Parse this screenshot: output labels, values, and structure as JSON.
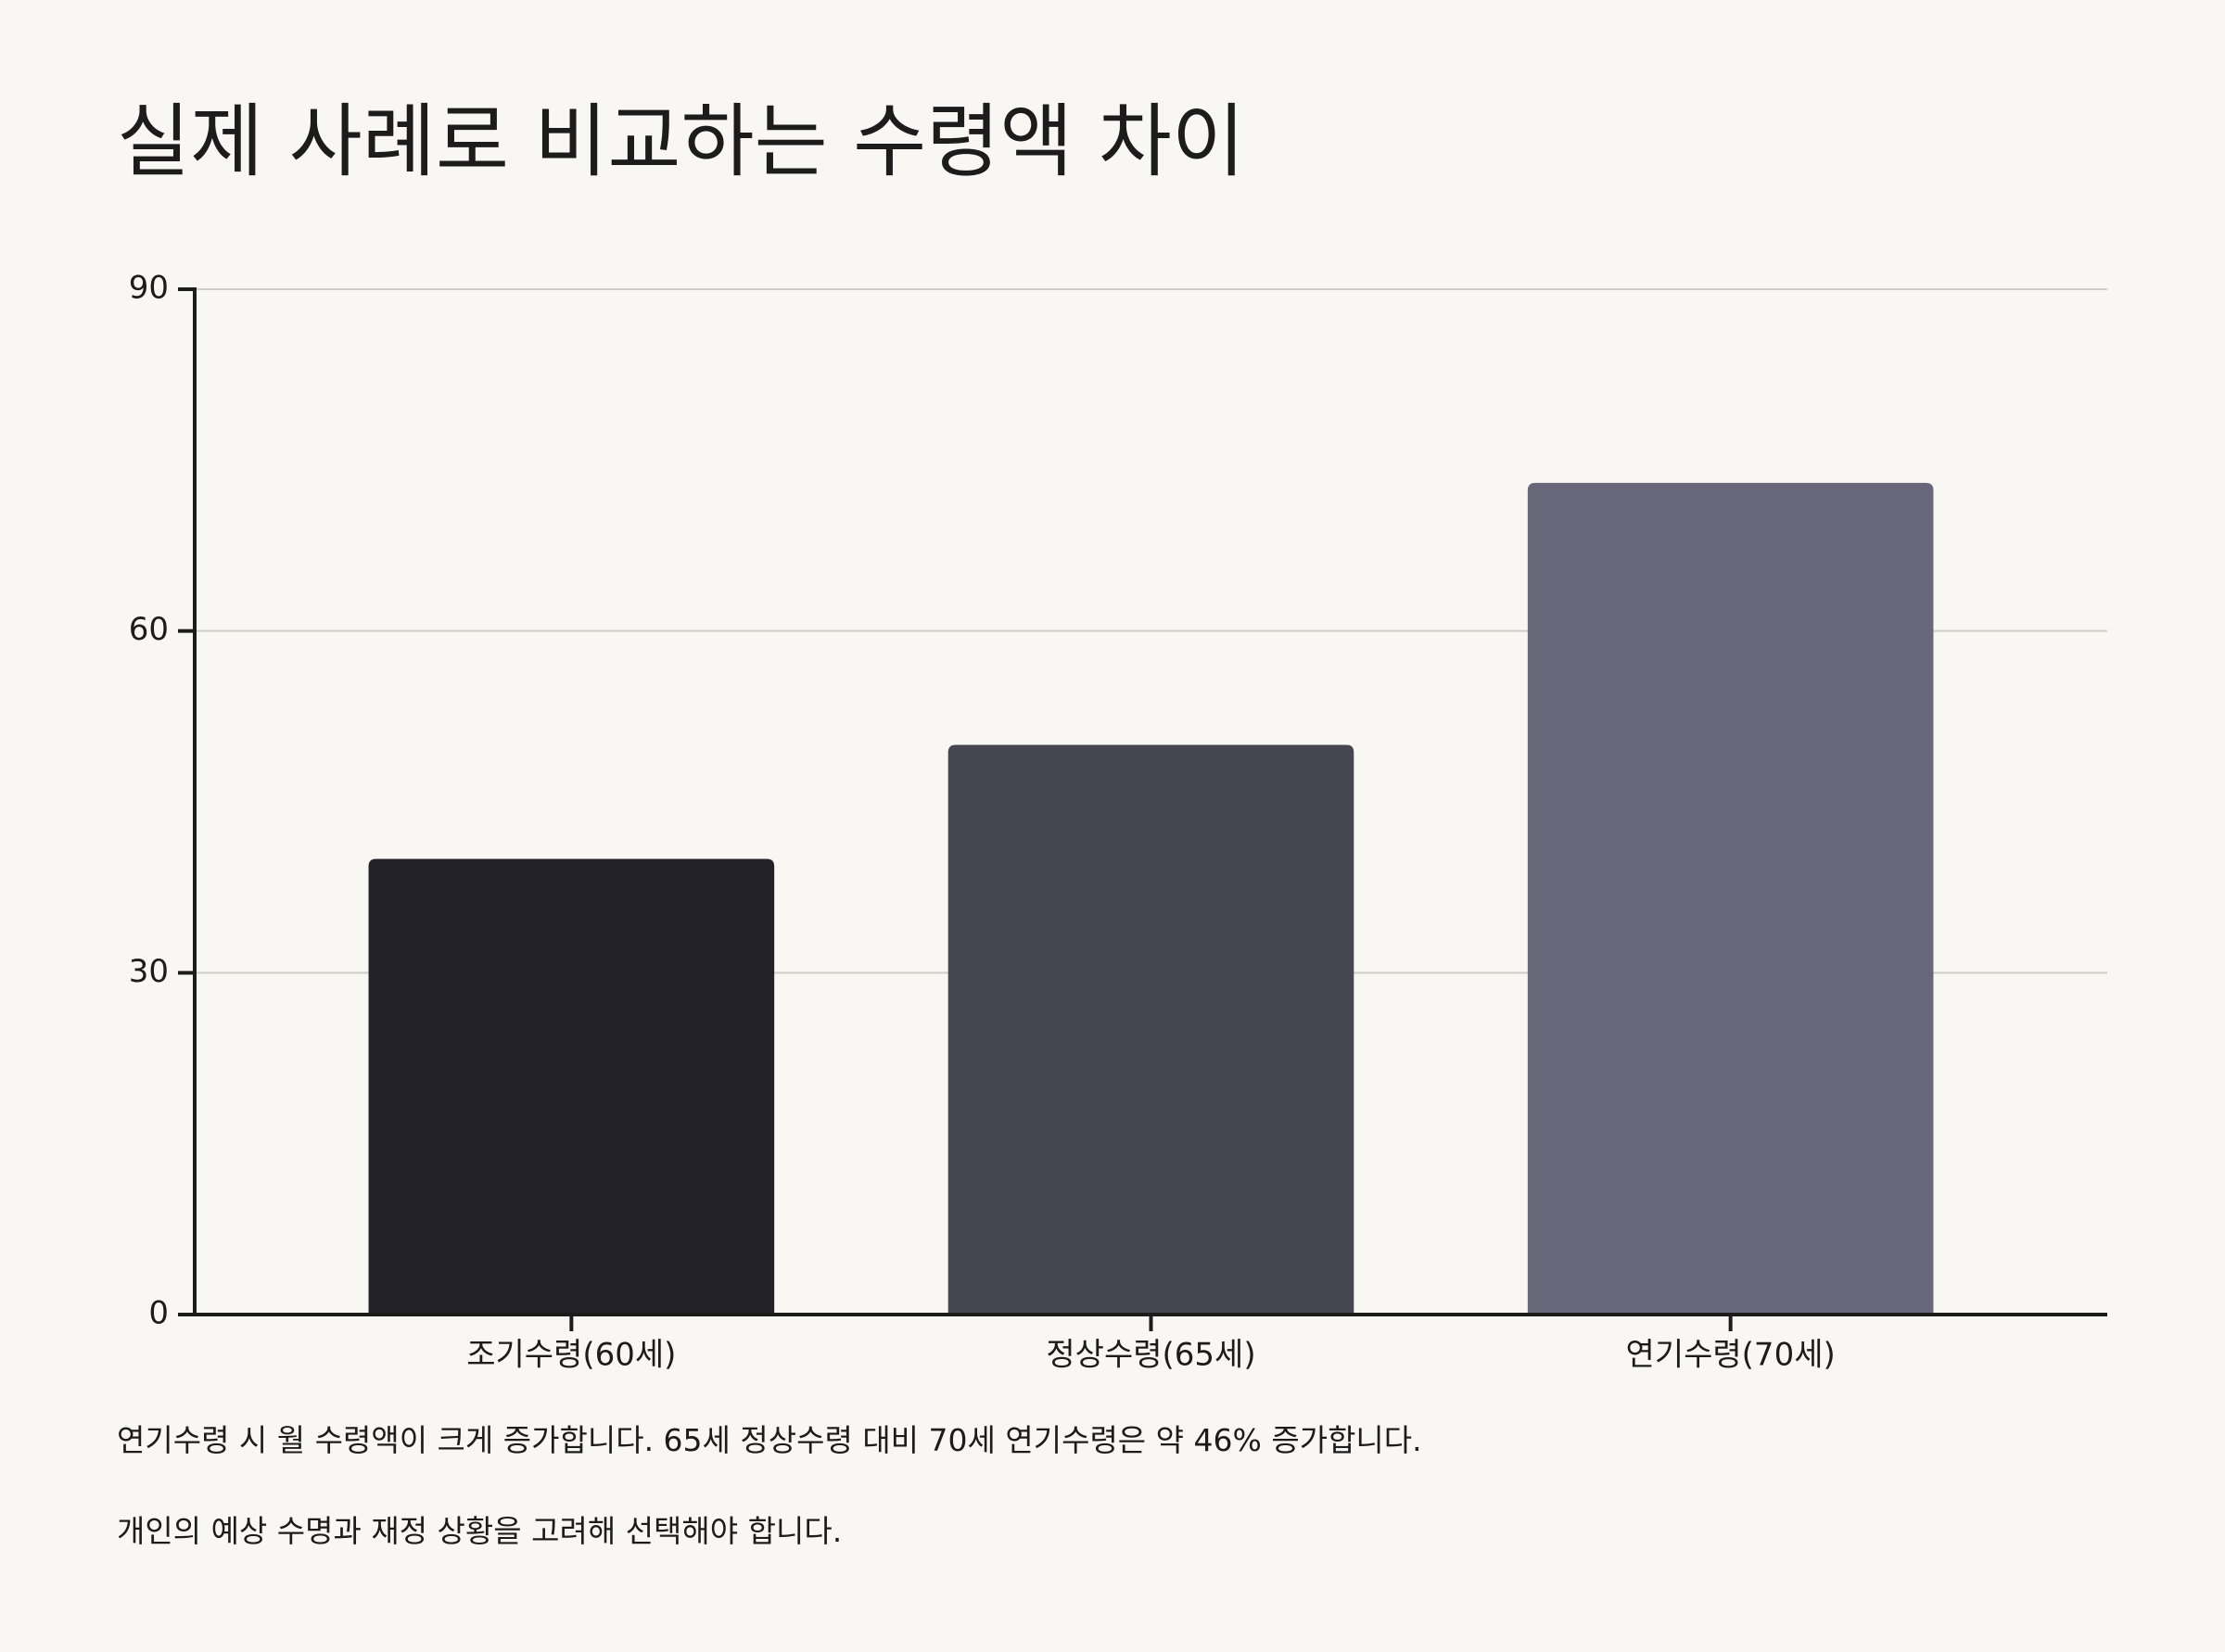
{
  "chart_data": {
    "type": "bar",
    "title": "실제 사례로 비교하는 수령액 차이",
    "categories": [
      "조기수령(60세)",
      "정상수령(65세)",
      "연기수령(70세)"
    ],
    "values": [
      40,
      50,
      73
    ],
    "colors": [
      "#232228",
      "#464651",
      "#686779"
    ],
    "ylim": [
      0,
      90
    ],
    "yticks": [
      0,
      30,
      60,
      90
    ],
    "grid": true,
    "notes": [
      "연기수령 시 월 수령액이 크게 증가합니다. 65세 정상수령 대비 70세 연기수령은 약 46% 증가합니다.",
      "개인의 예상 수명과 재정 상황을 고려해 선택해야 합니다."
    ]
  }
}
